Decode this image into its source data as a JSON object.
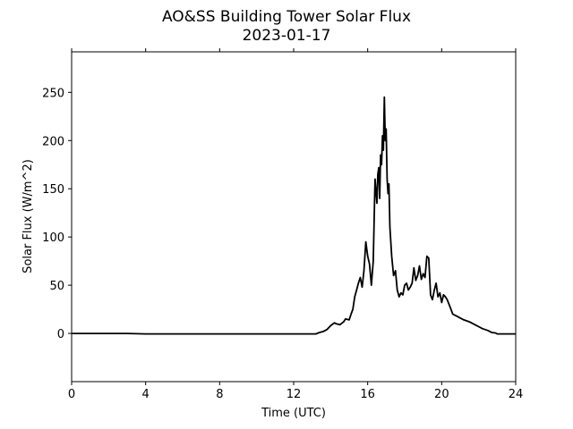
{
  "chart_data": {
    "type": "line",
    "title": "AO&SS Building Tower Solar Flux",
    "subtitle": "2023-01-17",
    "xlabel": "Time (UTC)",
    "ylabel": "Solar Flux (W/m^2)",
    "xlim": [
      0,
      24
    ],
    "ylim": [
      -50,
      292
    ],
    "xticks": [
      0,
      4,
      8,
      12,
      16,
      20,
      24
    ],
    "yticks": [
      0,
      50,
      100,
      150,
      200,
      250
    ],
    "grid": false,
    "legend": "none",
    "series": [
      {
        "color": "#000000",
        "x": [
          0,
          1,
          2,
          3,
          4,
          6,
          8,
          10,
          12,
          13.2,
          13.4,
          13.6,
          13.8,
          14.0,
          14.2,
          14.3,
          14.5,
          14.7,
          14.8,
          15.0,
          15.1,
          15.2,
          15.3,
          15.4,
          15.5,
          15.6,
          15.7,
          15.8,
          15.9,
          16.0,
          16.1,
          16.2,
          16.3,
          16.4,
          16.5,
          16.55,
          16.6,
          16.65,
          16.7,
          16.75,
          16.8,
          16.85,
          16.9,
          16.95,
          17.0,
          17.05,
          17.1,
          17.15,
          17.2,
          17.3,
          17.4,
          17.5,
          17.6,
          17.7,
          17.8,
          17.9,
          18.0,
          18.1,
          18.2,
          18.3,
          18.4,
          18.5,
          18.6,
          18.7,
          18.8,
          18.9,
          19.0,
          19.1,
          19.2,
          19.3,
          19.4,
          19.5,
          19.6,
          19.7,
          19.8,
          19.9,
          20.0,
          20.1,
          20.2,
          20.3,
          20.4,
          20.5,
          20.6,
          20.8,
          21.0,
          21.2,
          21.5,
          21.8,
          22.0,
          22.2,
          22.5,
          22.7,
          22.9,
          23.0,
          23.5,
          24.0
        ],
        "y": [
          0,
          0,
          0,
          0,
          -0.5,
          -0.5,
          -0.5,
          -0.5,
          -0.5,
          -0.5,
          1,
          2,
          4,
          8,
          11,
          10,
          9,
          12,
          15,
          14,
          20,
          25,
          38,
          45,
          52,
          58,
          48,
          65,
          95,
          80,
          72,
          50,
          75,
          160,
          135,
          165,
          172,
          140,
          185,
          175,
          205,
          190,
          245,
          200,
          212,
          160,
          145,
          155,
          110,
          80,
          60,
          65,
          45,
          38,
          42,
          40,
          50,
          52,
          45,
          48,
          52,
          68,
          55,
          60,
          70,
          56,
          62,
          58,
          80,
          78,
          40,
          35,
          45,
          52,
          38,
          42,
          32,
          40,
          38,
          35,
          30,
          25,
          20,
          18,
          16,
          14,
          12,
          9,
          7,
          5,
          3,
          1,
          0.5,
          -0.5,
          -0.5,
          -0.5
        ]
      }
    ]
  }
}
